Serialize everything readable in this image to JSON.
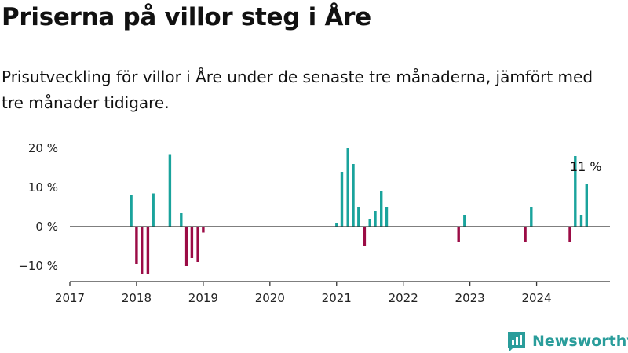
{
  "title": "Priserna på villor steg i Åre",
  "subtitle": "Prisutveckling för villor i Åre under de senaste tre månaderna, jämfört med tre månader tidigare.",
  "brand": "Newsworthy",
  "colors": {
    "positive": "#1aa39c",
    "negative": "#9b0b45",
    "axis": "#333333",
    "brand": "#2a9d9b"
  },
  "chart_data": {
    "type": "bar",
    "y_ticks": [
      {
        "value": 20,
        "label": "20 %"
      },
      {
        "value": 10,
        "label": "10 %"
      },
      {
        "value": 0,
        "label": "0 %"
      },
      {
        "value": -10,
        "label": "−10 %"
      }
    ],
    "x_ticks": [
      {
        "value": 2017,
        "label": "2017"
      },
      {
        "value": 2018,
        "label": "2018"
      },
      {
        "value": 2019,
        "label": "2019"
      },
      {
        "value": 2020,
        "label": "2020"
      },
      {
        "value": 2021,
        "label": "2021"
      },
      {
        "value": 2022,
        "label": "2022"
      },
      {
        "value": 2023,
        "label": "2023"
      },
      {
        "value": 2024,
        "label": "2024"
      }
    ],
    "xlim": [
      2017,
      2025.1
    ],
    "ylim": [
      -14,
      21
    ],
    "annotation": {
      "label": "11 %",
      "date": 2024.75,
      "value": 11
    },
    "x": [
      2017.92,
      2018.0,
      2018.08,
      2018.17,
      2018.25,
      2018.5,
      2018.67,
      2018.75,
      2018.83,
      2018.92,
      2019.0,
      2021.0,
      2021.08,
      2021.17,
      2021.25,
      2021.33,
      2021.42,
      2021.5,
      2021.58,
      2021.67,
      2021.75,
      2022.83,
      2022.92,
      2023.83,
      2023.92,
      2024.5,
      2024.58,
      2024.67,
      2024.75
    ],
    "values": [
      8,
      -9.5,
      -12,
      -12,
      8.5,
      18.5,
      3.5,
      -10,
      -8,
      -9,
      -1.5,
      1,
      14,
      20,
      16,
      5,
      -5,
      2,
      4,
      9,
      5,
      -4,
      3,
      -4,
      5,
      -4,
      18,
      3,
      11
    ]
  }
}
